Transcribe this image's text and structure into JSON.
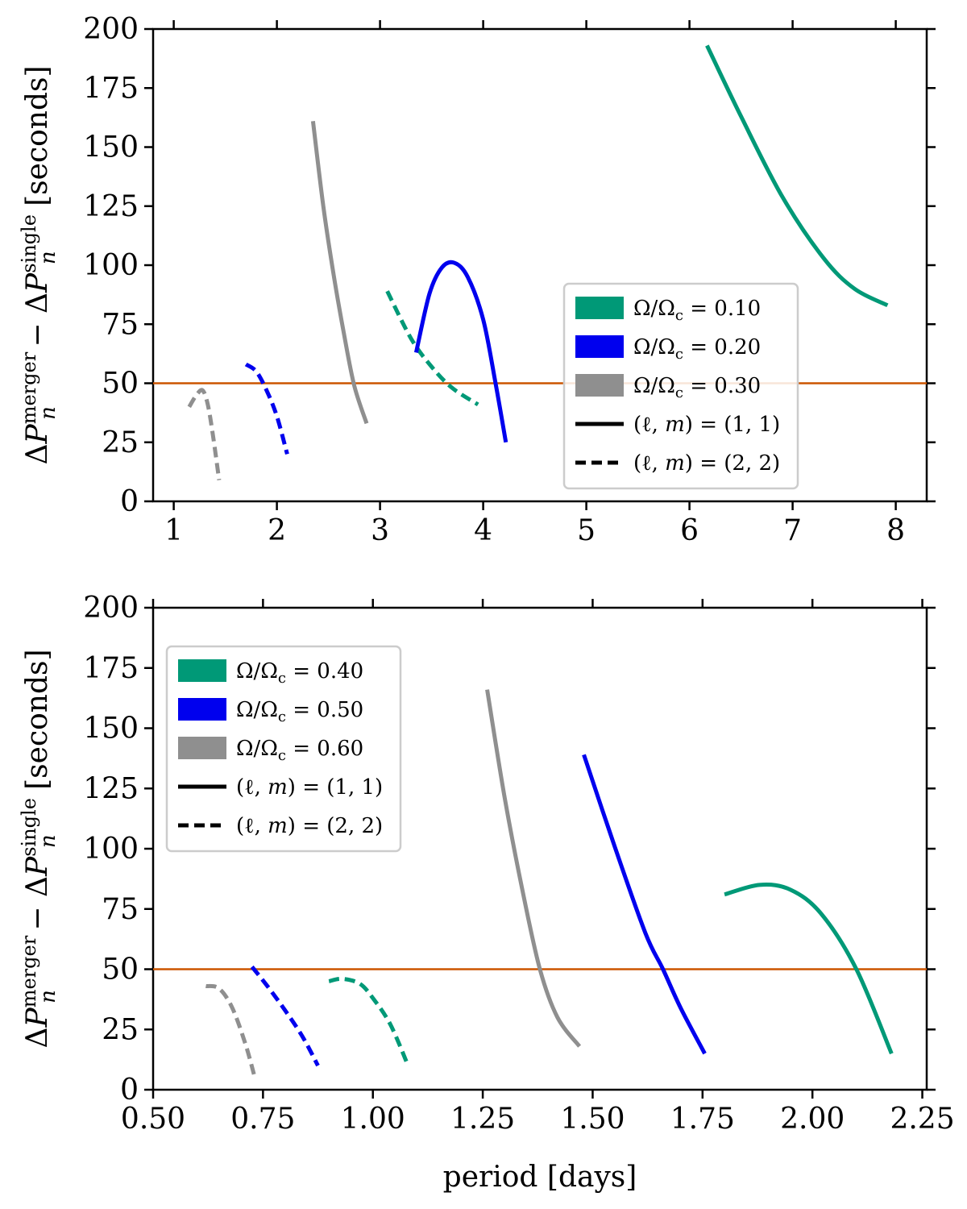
{
  "figure": {
    "colors": {
      "green": "#009977",
      "blue": "#0000ee",
      "gray": "#8f8f8f",
      "reference_line": "#cc5500",
      "black": "#000000"
    }
  },
  "chart_data": [
    {
      "type": "line",
      "panel": "top",
      "xlabel": "",
      "ylabel_parts": {
        "delta": "Δ",
        "p": "P",
        "n": "n",
        "sup_merger": "merger",
        "minus": " − ",
        "sup_single": "single",
        "unit": " [seconds]"
      },
      "xlim": [
        0.8,
        8.3
      ],
      "ylim": [
        0,
        200
      ],
      "xticks": [
        1,
        2,
        3,
        4,
        5,
        6,
        7,
        8
      ],
      "xtick_labels": [
        "1",
        "2",
        "3",
        "4",
        "5",
        "6",
        "7",
        "8"
      ],
      "yticks": [
        0,
        25,
        50,
        75,
        100,
        125,
        150,
        175,
        200
      ],
      "ytick_labels": [
        "0",
        "25",
        "50",
        "75",
        "100",
        "125",
        "150",
        "175",
        "200"
      ],
      "reference_line": {
        "y": 50
      },
      "legend": {
        "placement": "center-right",
        "entries": [
          {
            "label": "Ω/Ωc = 0.10",
            "prefix": "Ω/Ω",
            "sub": "c",
            "suffix": " = 0.10",
            "color": "#009977",
            "style": "patch"
          },
          {
            "label": "Ω/Ωc = 0.20",
            "prefix": "Ω/Ω",
            "sub": "c",
            "suffix": " = 0.20",
            "color": "#0000ee",
            "style": "patch"
          },
          {
            "label": "Ω/Ωc = 0.30",
            "prefix": "Ω/Ω",
            "sub": "c",
            "suffix": " = 0.30",
            "color": "#8f8f8f",
            "style": "patch"
          },
          {
            "label": "(ℓ, m) = (1, 1)",
            "prefix": "(ℓ, ",
            "var": "m",
            "suffix": ") = (1, 1)",
            "color": "#000000",
            "style": "solid"
          },
          {
            "label": "(ℓ, m) = (2, 2)",
            "prefix": "(ℓ, ",
            "var": "m",
            "suffix": ") = (2, 2)",
            "color": "#000000",
            "style": "dashed"
          }
        ]
      },
      "series": [
        {
          "name": "Ω/Ωc = 0.10, (ℓ, m) = (1, 1)",
          "color": "#009977",
          "dash": false,
          "x": [
            6.17,
            6.5,
            6.9,
            7.3,
            7.6,
            7.92
          ],
          "y": [
            193,
            163,
            129,
            103,
            90,
            83
          ]
        },
        {
          "name": "Ω/Ωc = 0.10, (ℓ, m) = (2, 2)",
          "color": "#009977",
          "dash": true,
          "x": [
            3.07,
            3.3,
            3.5,
            3.7,
            3.95
          ],
          "y": [
            89,
            69,
            57,
            48,
            41
          ]
        },
        {
          "name": "Ω/Ωc = 0.20, (ℓ, m) = (1, 1)",
          "color": "#0000ee",
          "dash": false,
          "x": [
            3.35,
            3.48,
            3.6,
            3.72,
            3.85,
            4.0,
            4.12,
            4.22
          ],
          "y": [
            63,
            88,
            99,
            101,
            95,
            77,
            50,
            25
          ]
        },
        {
          "name": "Ω/Ωc = 0.20, (ℓ, m) = (2, 2)",
          "color": "#0000ee",
          "dash": true,
          "x": [
            1.7,
            1.8,
            1.9,
            2.0,
            2.1
          ],
          "y": [
            58,
            55,
            47,
            36,
            20
          ]
        },
        {
          "name": "Ω/Ωc = 0.30, (ℓ, m) = (1, 1)",
          "color": "#8f8f8f",
          "dash": false,
          "x": [
            2.35,
            2.45,
            2.55,
            2.65,
            2.75,
            2.87
          ],
          "y": [
            161,
            125,
            96,
            71,
            49,
            33
          ]
        },
        {
          "name": "Ω/Ωc = 0.30, (ℓ, m) = (2, 2)",
          "color": "#8f8f8f",
          "dash": true,
          "x": [
            1.15,
            1.22,
            1.28,
            1.33,
            1.38,
            1.44
          ],
          "y": [
            40,
            45,
            47,
            41,
            28,
            9
          ]
        }
      ]
    },
    {
      "type": "line",
      "panel": "bottom",
      "xlabel": "period [days]",
      "ylabel_parts": {
        "delta": "Δ",
        "p": "P",
        "n": "n",
        "sup_merger": "merger",
        "minus": " − ",
        "sup_single": "single",
        "unit": " [seconds]"
      },
      "xlim": [
        0.5,
        2.26
      ],
      "ylim": [
        0,
        200
      ],
      "xticks": [
        0.5,
        0.75,
        1.0,
        1.25,
        1.5,
        1.75,
        2.0,
        2.25
      ],
      "xtick_labels": [
        "0.50",
        "0.75",
        "1.00",
        "1.25",
        "1.50",
        "1.75",
        "2.00",
        "2.25"
      ],
      "yticks": [
        0,
        25,
        50,
        75,
        100,
        125,
        150,
        175,
        200
      ],
      "ytick_labels": [
        "0",
        "25",
        "50",
        "75",
        "100",
        "125",
        "150",
        "175",
        "200"
      ],
      "reference_line": {
        "y": 50
      },
      "legend": {
        "placement": "upper-left",
        "entries": [
          {
            "label": "Ω/Ωc = 0.40",
            "prefix": "Ω/Ω",
            "sub": "c",
            "suffix": " = 0.40",
            "color": "#009977",
            "style": "patch"
          },
          {
            "label": "Ω/Ωc = 0.50",
            "prefix": "Ω/Ω",
            "sub": "c",
            "suffix": " = 0.50",
            "color": "#0000ee",
            "style": "patch"
          },
          {
            "label": "Ω/Ωc = 0.60",
            "prefix": "Ω/Ω",
            "sub": "c",
            "suffix": " = 0.60",
            "color": "#8f8f8f",
            "style": "patch"
          },
          {
            "label": "(ℓ, m) = (1, 1)",
            "prefix": "(ℓ, ",
            "var": "m",
            "suffix": ") = (1, 1)",
            "color": "#000000",
            "style": "solid"
          },
          {
            "label": "(ℓ, m) = (2, 2)",
            "prefix": "(ℓ, ",
            "var": "m",
            "suffix": ") = (2, 2)",
            "color": "#000000",
            "style": "dashed"
          }
        ]
      },
      "series": [
        {
          "name": "Ω/Ωc = 0.40, (ℓ, m) = (1, 1)",
          "color": "#009977",
          "dash": false,
          "x": [
            1.8,
            1.88,
            1.95,
            2.02,
            2.1,
            2.18
          ],
          "y": [
            81,
            85,
            83,
            73,
            50,
            15
          ]
        },
        {
          "name": "Ω/Ωc = 0.40, (ℓ, m) = (2, 2)",
          "color": "#009977",
          "dash": true,
          "x": [
            0.9,
            0.93,
            0.97,
            1.0,
            1.04,
            1.08
          ],
          "y": [
            45,
            46,
            44,
            38,
            27,
            10
          ]
        },
        {
          "name": "Ω/Ωc = 0.50, (ℓ, m) = (1, 1)",
          "color": "#0000ee",
          "dash": false,
          "x": [
            1.48,
            1.55,
            1.62,
            1.66,
            1.7,
            1.755
          ],
          "y": [
            139,
            101,
            65,
            50,
            34,
            15
          ]
        },
        {
          "name": "Ω/Ωc = 0.50, (ℓ, m) = (2, 2)",
          "color": "#0000ee",
          "dash": true,
          "x": [
            0.725,
            0.76,
            0.8,
            0.84,
            0.875
          ],
          "y": [
            51,
            43,
            33,
            22,
            10
          ]
        },
        {
          "name": "Ω/Ωc = 0.60, (ℓ, m) = (1, 1)",
          "color": "#8f8f8f",
          "dash": false,
          "x": [
            1.26,
            1.3,
            1.34,
            1.38,
            1.42,
            1.47
          ],
          "y": [
            166,
            121,
            83,
            50,
            30,
            18
          ]
        },
        {
          "name": "Ω/Ωc = 0.60, (ℓ, m) = (2, 2)",
          "color": "#8f8f8f",
          "dash": true,
          "x": [
            0.62,
            0.65,
            0.68,
            0.71,
            0.73
          ],
          "y": [
            43,
            42,
            34,
            19,
            6
          ]
        }
      ]
    }
  ]
}
